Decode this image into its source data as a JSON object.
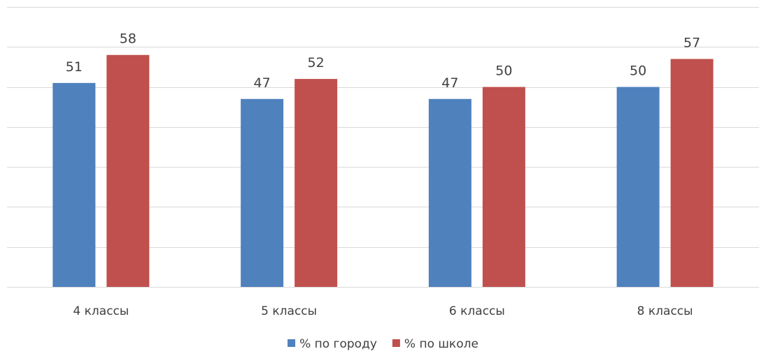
{
  "chart_data": {
    "type": "bar",
    "title": "",
    "xlabel": "",
    "ylabel": "",
    "categories": [
      "4 классы",
      "5 классы",
      "6 классы",
      "8 классы"
    ],
    "series": [
      {
        "name": "% по городу",
        "color": "#4f81bd",
        "values": [
          51,
          47,
          47,
          50
        ]
      },
      {
        "name": "% по школе",
        "color": "#c0504d",
        "values": [
          58,
          52,
          50,
          57
        ]
      }
    ],
    "ylim": [
      0,
      70
    ],
    "y_gridline_step": 10,
    "grid": true,
    "legend_position": "bottom",
    "data_labels": true
  }
}
